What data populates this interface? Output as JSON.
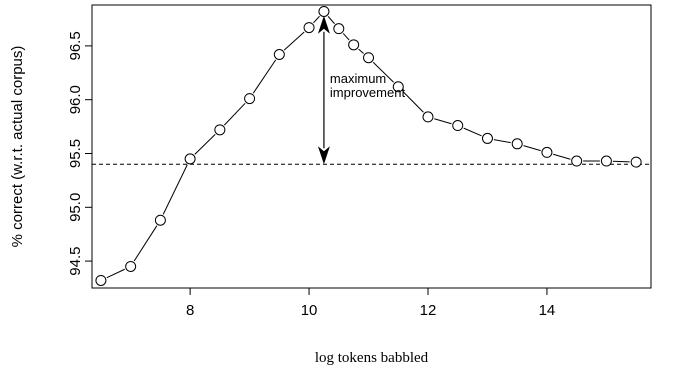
{
  "chart_data": {
    "type": "line",
    "title": "",
    "xlabel": "log tokens babbled",
    "ylabel": "% correct (w.r.t. actual corpus)",
    "xlim": [
      6.35,
      15.75
    ],
    "ylim": [
      94.25,
      96.88
    ],
    "x_ticks": [
      8,
      10,
      12,
      14
    ],
    "y_ticks": [
      94.5,
      95.0,
      95.5,
      96.0,
      96.5
    ],
    "x_tick_labels": [
      "8",
      "10",
      "12",
      "14"
    ],
    "y_tick_labels": [
      "94.5",
      "95.0",
      "95.5",
      "96.0",
      "96.5"
    ],
    "grid": false,
    "series": [
      {
        "marker": "open-circle",
        "line_style": "solid",
        "color": "#000000",
        "x": [
          6.5,
          7.0,
          7.5,
          8.0,
          8.5,
          9.0,
          9.5,
          10.0,
          10.25,
          10.5,
          10.75,
          11.0,
          11.5,
          12.0,
          12.5,
          13.0,
          13.5,
          14.0,
          14.5,
          15.0,
          15.5
        ],
        "y": [
          94.32,
          94.45,
          94.88,
          95.45,
          95.72,
          96.01,
          96.42,
          96.67,
          96.82,
          96.66,
          96.51,
          96.39,
          96.12,
          95.84,
          95.76,
          95.64,
          95.59,
          95.51,
          95.43,
          95.43,
          95.42
        ]
      }
    ],
    "reference_line": {
      "y": 95.4,
      "style": "dashed",
      "color": "#000000"
    },
    "annotation": {
      "text_lines": [
        "maximum",
        "improvement"
      ],
      "arrow_x": 10.25,
      "arrow_y_top": 96.78,
      "arrow_y_bottom": 95.4
    }
  }
}
